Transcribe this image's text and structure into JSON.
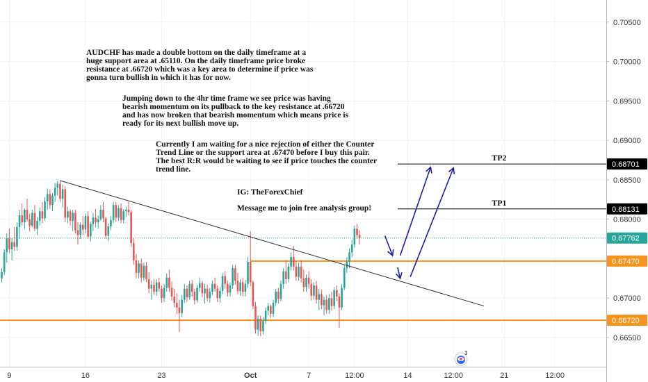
{
  "chart_data": {
    "type": "candlestick",
    "symbol": "AUDCHF",
    "y_ticks": [
      0.665,
      0.67,
      0.675,
      0.68,
      0.685,
      0.69,
      0.695,
      0.7,
      0.705
    ],
    "y_tick_labels": [
      "0.66500",
      "0.67000",
      "0.67500",
      "0.68000",
      "0.68500",
      "0.69000",
      "0.69500",
      "0.70000",
      "0.70500"
    ],
    "ylim": [
      0.6613,
      0.7078
    ],
    "x_ticks": [
      {
        "label": "9",
        "bar": 3
      },
      {
        "label": "16",
        "bar": 33
      },
      {
        "label": "23",
        "bar": 63
      },
      {
        "label": "Oct",
        "bar": 98,
        "bold": true
      },
      {
        "label": "7",
        "bar": 121
      },
      {
        "label": "12:00",
        "bar": 139
      },
      {
        "label": "14",
        "bar": 160
      },
      {
        "label": "12:00",
        "bar": 178
      },
      {
        "label": "21",
        "bar": 198
      },
      {
        "label": "12:00",
        "bar": 218
      }
    ],
    "price_tags": [
      {
        "value": 0.68701,
        "label": "0.68701",
        "bg": "#000000",
        "fg": "#ffffff"
      },
      {
        "value": 0.68131,
        "label": "0.68131",
        "bg": "#000000",
        "fg": "#ffffff"
      },
      {
        "value": 0.67762,
        "label": "0.67762",
        "bg": "#26a69a",
        "fg": "#ffffff"
      },
      {
        "value": 0.6747,
        "label": "0.67470",
        "bg": "#f7931a",
        "fg": "#ffffff"
      },
      {
        "value": 0.6672,
        "label": "0.66720",
        "bg": "#f7931a",
        "fg": "#ffffff"
      }
    ],
    "horizontal_levels": [
      {
        "value": 0.6747,
        "color": "#f7931a",
        "bar_from": 98,
        "bar_to": 236
      },
      {
        "value": 0.6672,
        "color": "#f7931a",
        "bar_from": 0,
        "bar_to": 236
      },
      {
        "value": 0.68701,
        "color": "#000000",
        "bar_from": 156,
        "bar_to": 236
      },
      {
        "value": 0.68131,
        "color": "#000000",
        "bar_from": 156,
        "bar_to": 236
      }
    ],
    "current_price": {
      "value": 0.67762,
      "color": "#26a69a"
    },
    "tp_labels": [
      {
        "text": "TP2",
        "value": 0.68701,
        "bar": 196
      },
      {
        "text": "TP1",
        "value": 0.68131,
        "bar": 196
      }
    ],
    "trend_line": {
      "from": {
        "bar": 23,
        "value": 0.6849
      },
      "to": {
        "bar": 190,
        "value": 0.669
      }
    },
    "arrows": [
      {
        "from": {
          "bar": 151,
          "value": 0.6779
        },
        "to": {
          "bar": 154,
          "value": 0.6754
        }
      },
      {
        "from": {
          "bar": 156,
          "value": 0.6739
        },
        "to": {
          "bar": 157,
          "value": 0.6725
        }
      },
      {
        "from": {
          "bar": 157,
          "value": 0.6754
        },
        "to": {
          "bar": 169,
          "value": 0.6866
        }
      },
      {
        "from": {
          "bar": 161,
          "value": 0.6727
        },
        "to": {
          "bar": 178,
          "value": 0.6865
        }
      }
    ],
    "ohlc": [
      [
        0.6725,
        0.6738,
        0.672,
        0.6733
      ],
      [
        0.6733,
        0.6762,
        0.6729,
        0.6758
      ],
      [
        0.6758,
        0.6782,
        0.6745,
        0.6776
      ],
      [
        0.6776,
        0.6788,
        0.6757,
        0.6762
      ],
      [
        0.6762,
        0.6776,
        0.6748,
        0.6771
      ],
      [
        0.6771,
        0.679,
        0.676,
        0.6765
      ],
      [
        0.6765,
        0.6796,
        0.676,
        0.679
      ],
      [
        0.679,
        0.6812,
        0.6775,
        0.6805
      ],
      [
        0.6805,
        0.682,
        0.6792,
        0.6796
      ],
      [
        0.6796,
        0.6814,
        0.6788,
        0.6812
      ],
      [
        0.6812,
        0.6826,
        0.6797,
        0.68
      ],
      [
        0.68,
        0.6807,
        0.6785,
        0.6792
      ],
      [
        0.6792,
        0.6812,
        0.679,
        0.6808
      ],
      [
        0.6808,
        0.6818,
        0.6785,
        0.6788
      ],
      [
        0.6788,
        0.6803,
        0.678,
        0.6798
      ],
      [
        0.6798,
        0.6815,
        0.6792,
        0.681
      ],
      [
        0.681,
        0.6822,
        0.6795,
        0.6801
      ],
      [
        0.6801,
        0.6828,
        0.6798,
        0.6823
      ],
      [
        0.6823,
        0.6839,
        0.6812,
        0.6832
      ],
      [
        0.6832,
        0.6838,
        0.6813,
        0.6818
      ],
      [
        0.6818,
        0.6833,
        0.681,
        0.683
      ],
      [
        0.683,
        0.6846,
        0.6822,
        0.684
      ],
      [
        0.684,
        0.6849,
        0.683,
        0.6845
      ],
      [
        0.6845,
        0.6849,
        0.6822,
        0.6826
      ],
      [
        0.6826,
        0.6844,
        0.6815,
        0.6838
      ],
      [
        0.6838,
        0.6842,
        0.6796,
        0.6802
      ],
      [
        0.6802,
        0.6816,
        0.6795,
        0.681
      ],
      [
        0.681,
        0.6813,
        0.6792,
        0.6798
      ],
      [
        0.6798,
        0.6812,
        0.6785,
        0.6808
      ],
      [
        0.6808,
        0.6812,
        0.6782,
        0.6786
      ],
      [
        0.6786,
        0.6796,
        0.6768,
        0.678
      ],
      [
        0.678,
        0.6796,
        0.6775,
        0.6793
      ],
      [
        0.6793,
        0.6804,
        0.678,
        0.6787
      ],
      [
        0.6787,
        0.6807,
        0.6782,
        0.6804
      ],
      [
        0.6804,
        0.681,
        0.6775,
        0.6778
      ],
      [
        0.6778,
        0.6797,
        0.6772,
        0.6794
      ],
      [
        0.6794,
        0.6808,
        0.6785,
        0.6802
      ],
      [
        0.6802,
        0.6813,
        0.679,
        0.6796
      ],
      [
        0.6796,
        0.6805,
        0.6788,
        0.68
      ],
      [
        0.68,
        0.6818,
        0.6798,
        0.6812
      ],
      [
        0.6812,
        0.6822,
        0.6796,
        0.6801
      ],
      [
        0.6801,
        0.6803,
        0.6775,
        0.6779
      ],
      [
        0.6779,
        0.6795,
        0.6772,
        0.6791
      ],
      [
        0.6791,
        0.6804,
        0.6786,
        0.6799
      ],
      [
        0.6799,
        0.6822,
        0.6795,
        0.6818
      ],
      [
        0.6818,
        0.6822,
        0.6797,
        0.6802
      ],
      [
        0.6802,
        0.6818,
        0.6798,
        0.6814
      ],
      [
        0.6814,
        0.682,
        0.6795,
        0.6799
      ],
      [
        0.6799,
        0.6813,
        0.6795,
        0.681
      ],
      [
        0.681,
        0.6816,
        0.6803,
        0.6812
      ],
      [
        0.6812,
        0.6822,
        0.6805,
        0.6809
      ],
      [
        0.6809,
        0.6812,
        0.6765,
        0.677
      ],
      [
        0.677,
        0.6776,
        0.6742,
        0.6748
      ],
      [
        0.6748,
        0.6756,
        0.6725,
        0.6732
      ],
      [
        0.6732,
        0.6748,
        0.6725,
        0.6744
      ],
      [
        0.6744,
        0.675,
        0.672,
        0.6726
      ],
      [
        0.6726,
        0.6745,
        0.6722,
        0.6741
      ],
      [
        0.6741,
        0.6746,
        0.672,
        0.6724
      ],
      [
        0.6724,
        0.6733,
        0.6706,
        0.6712
      ],
      [
        0.6712,
        0.6722,
        0.6698,
        0.6717
      ],
      [
        0.6717,
        0.6724,
        0.6704,
        0.6708
      ],
      [
        0.6708,
        0.6724,
        0.6703,
        0.672
      ],
      [
        0.672,
        0.6726,
        0.6708,
        0.6712
      ],
      [
        0.6712,
        0.6716,
        0.6694,
        0.67
      ],
      [
        0.67,
        0.6718,
        0.6695,
        0.6713
      ],
      [
        0.6713,
        0.6731,
        0.6708,
        0.6726
      ],
      [
        0.6726,
        0.6736,
        0.6708,
        0.6713
      ],
      [
        0.6713,
        0.6721,
        0.6697,
        0.6702
      ],
      [
        0.6702,
        0.6712,
        0.6688,
        0.6694
      ],
      [
        0.6694,
        0.6706,
        0.668,
        0.6688
      ],
      [
        0.6688,
        0.6698,
        0.6657,
        0.6681
      ],
      [
        0.6681,
        0.6704,
        0.6676,
        0.6698
      ],
      [
        0.6698,
        0.6718,
        0.6694,
        0.6712
      ],
      [
        0.6712,
        0.6716,
        0.6695,
        0.6701
      ],
      [
        0.6701,
        0.6722,
        0.6698,
        0.6718
      ],
      [
        0.6718,
        0.6723,
        0.6702,
        0.6708
      ],
      [
        0.6708,
        0.6712,
        0.6692,
        0.6697
      ],
      [
        0.6697,
        0.6717,
        0.6694,
        0.6713
      ],
      [
        0.6713,
        0.6726,
        0.6708,
        0.6719
      ],
      [
        0.6719,
        0.6722,
        0.6701,
        0.6706
      ],
      [
        0.6706,
        0.6718,
        0.6693,
        0.6712
      ],
      [
        0.6712,
        0.6717,
        0.6696,
        0.67
      ],
      [
        0.67,
        0.6713,
        0.6694,
        0.6708
      ],
      [
        0.6708,
        0.6722,
        0.6704,
        0.6718
      ],
      [
        0.6718,
        0.6726,
        0.6708,
        0.6712
      ],
      [
        0.6712,
        0.6716,
        0.6695,
        0.67
      ],
      [
        0.67,
        0.6714,
        0.6694,
        0.6709
      ],
      [
        0.6709,
        0.6732,
        0.6705,
        0.6728
      ],
      [
        0.6728,
        0.6734,
        0.6712,
        0.6718
      ],
      [
        0.6718,
        0.6722,
        0.6702,
        0.6707
      ],
      [
        0.6707,
        0.672,
        0.6702,
        0.6716
      ],
      [
        0.6716,
        0.6742,
        0.6712,
        0.6738
      ],
      [
        0.6738,
        0.6742,
        0.6717,
        0.6722
      ],
      [
        0.6722,
        0.6732,
        0.6705,
        0.6709
      ],
      [
        0.6709,
        0.6724,
        0.6703,
        0.672
      ],
      [
        0.672,
        0.6726,
        0.6702,
        0.6708
      ],
      [
        0.6708,
        0.6723,
        0.6702,
        0.6718
      ],
      [
        0.6718,
        0.6752,
        0.6713,
        0.6746
      ],
      [
        0.6746,
        0.6785,
        0.6715,
        0.672
      ],
      [
        0.672,
        0.6722,
        0.6686,
        0.669
      ],
      [
        0.669,
        0.6695,
        0.6655,
        0.666
      ],
      [
        0.666,
        0.6678,
        0.6652,
        0.6674
      ],
      [
        0.6674,
        0.6678,
        0.6652,
        0.6658
      ],
      [
        0.6658,
        0.6676,
        0.6654,
        0.6671
      ],
      [
        0.6671,
        0.6688,
        0.6667,
        0.6684
      ],
      [
        0.6684,
        0.6694,
        0.6678,
        0.669
      ],
      [
        0.669,
        0.6692,
        0.6675,
        0.668
      ],
      [
        0.668,
        0.6698,
        0.6676,
        0.6694
      ],
      [
        0.6694,
        0.6712,
        0.669,
        0.6708
      ],
      [
        0.6708,
        0.6713,
        0.6693,
        0.6699
      ],
      [
        0.6699,
        0.6722,
        0.6696,
        0.6718
      ],
      [
        0.6718,
        0.6738,
        0.6712,
        0.6734
      ],
      [
        0.6734,
        0.6748,
        0.6718,
        0.6724
      ],
      [
        0.6724,
        0.6744,
        0.672,
        0.674
      ],
      [
        0.674,
        0.6758,
        0.6735,
        0.6752
      ],
      [
        0.6752,
        0.6766,
        0.6735,
        0.674
      ],
      [
        0.674,
        0.6747,
        0.6722,
        0.6727
      ],
      [
        0.6727,
        0.6745,
        0.6722,
        0.674
      ],
      [
        0.674,
        0.6748,
        0.672,
        0.6725
      ],
      [
        0.6725,
        0.6736,
        0.6708,
        0.6714
      ],
      [
        0.6714,
        0.673,
        0.6708,
        0.6726
      ],
      [
        0.6726,
        0.6734,
        0.6712,
        0.6718
      ],
      [
        0.6718,
        0.6724,
        0.6697,
        0.6703
      ],
      [
        0.6703,
        0.672,
        0.6698,
        0.6716
      ],
      [
        0.6716,
        0.6722,
        0.6693,
        0.6698
      ],
      [
        0.6698,
        0.6712,
        0.6685,
        0.6705
      ],
      [
        0.6705,
        0.6711,
        0.6686,
        0.6691
      ],
      [
        0.6691,
        0.6702,
        0.6678,
        0.6698
      ],
      [
        0.6698,
        0.6704,
        0.668,
        0.6685
      ],
      [
        0.6685,
        0.6705,
        0.668,
        0.67
      ],
      [
        0.67,
        0.6708,
        0.6684,
        0.669
      ],
      [
        0.669,
        0.6714,
        0.6686,
        0.671
      ],
      [
        0.671,
        0.6716,
        0.6696,
        0.6702
      ],
      [
        0.6702,
        0.6706,
        0.6662,
        0.6688
      ],
      [
        0.6688,
        0.6718,
        0.6685,
        0.6713
      ],
      [
        0.6713,
        0.6742,
        0.671,
        0.6738
      ],
      [
        0.6738,
        0.6752,
        0.6732,
        0.6746
      ],
      [
        0.6746,
        0.6763,
        0.6738,
        0.6758
      ],
      [
        0.6758,
        0.6774,
        0.6752,
        0.6768
      ],
      [
        0.6768,
        0.6792,
        0.6764,
        0.6788
      ],
      [
        0.6788,
        0.6794,
        0.6775,
        0.678
      ],
      [
        0.678,
        0.6786,
        0.6768,
        0.6776
      ]
    ]
  }
}
